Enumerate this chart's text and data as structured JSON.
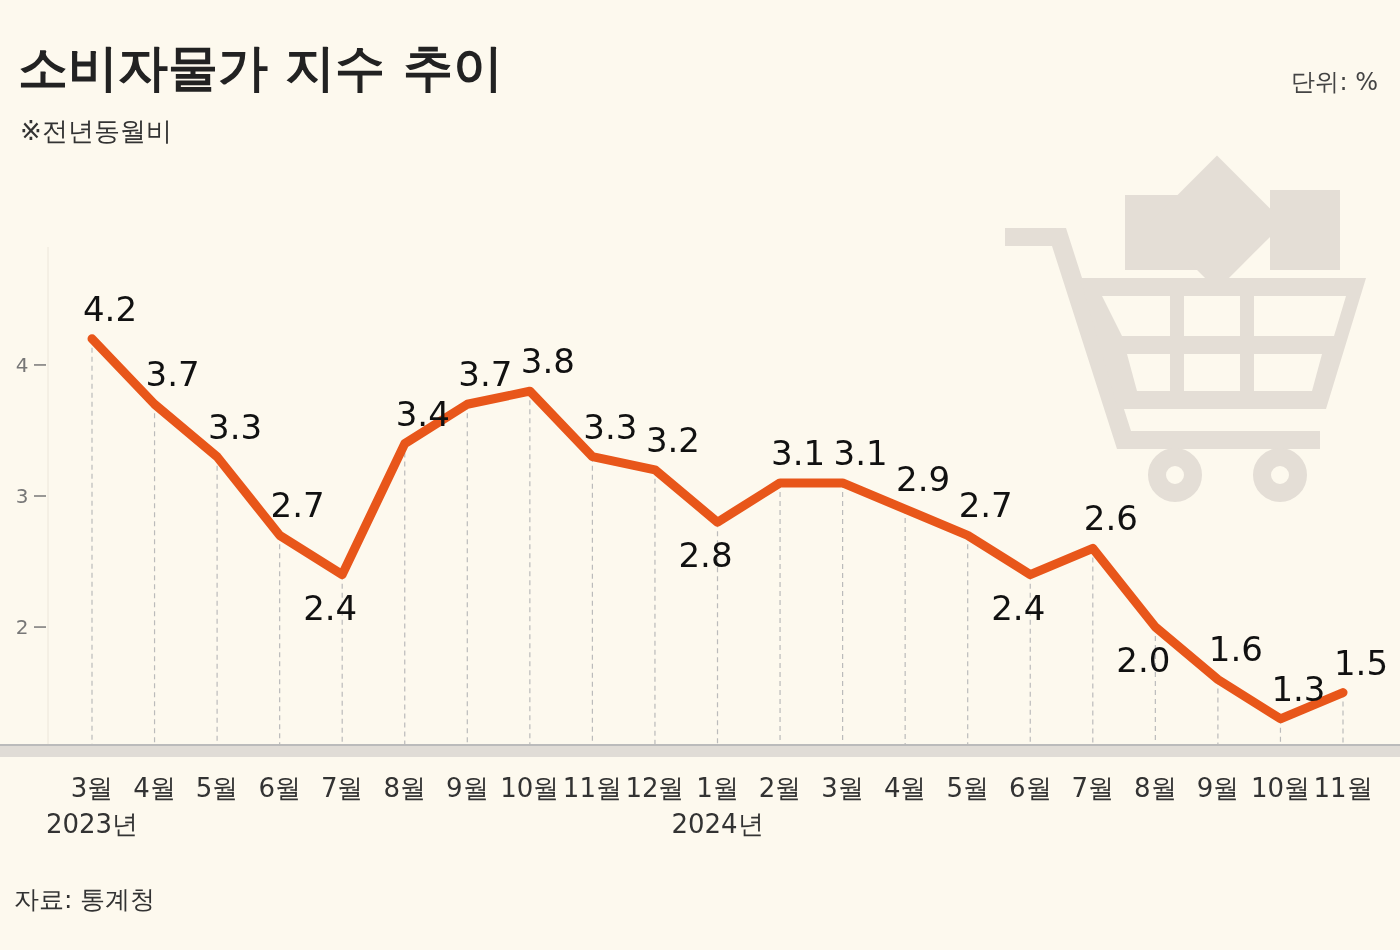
{
  "chart_data": {
    "type": "line",
    "title": "소비자물가 지수 추이",
    "subtitle": "※전년동월비",
    "annotations": [
      "단위: %",
      "자료: 통계청"
    ],
    "categories": [
      "3월\n2023년",
      "4월",
      "5월",
      "6월",
      "7월",
      "8월",
      "9월",
      "10월",
      "11월",
      "12월",
      "1월\n2024년",
      "2월",
      "3월",
      "4월",
      "5월",
      "6월",
      "7월",
      "8월",
      "9월",
      "10월",
      "11월"
    ],
    "series": [
      {
        "color": "#e8561a",
        "values": [
          4.2,
          3.7,
          3.3,
          2.7,
          2.4,
          3.4,
          3.7,
          3.8,
          3.3,
          3.2,
          2.8,
          3.1,
          3.1,
          2.9,
          2.7,
          2.4,
          2.6,
          2.0,
          1.6,
          1.3,
          1.5
        ],
        "value_labels": [
          "4.2",
          "3.7",
          "3.3",
          "2.7",
          "2.4",
          "3.4",
          "3.7",
          "3.8",
          "3.3",
          "3.2",
          "2.8",
          "3.1",
          "3.1",
          "2.9",
          "2.7",
          "2.4",
          "2.6",
          "2.0",
          "1.6",
          "1.3",
          "1.5"
        ]
      }
    ],
    "ylim": [
      1.1,
      4.9
    ],
    "yticks": [
      2,
      3,
      4
    ],
    "grid": "x"
  }
}
